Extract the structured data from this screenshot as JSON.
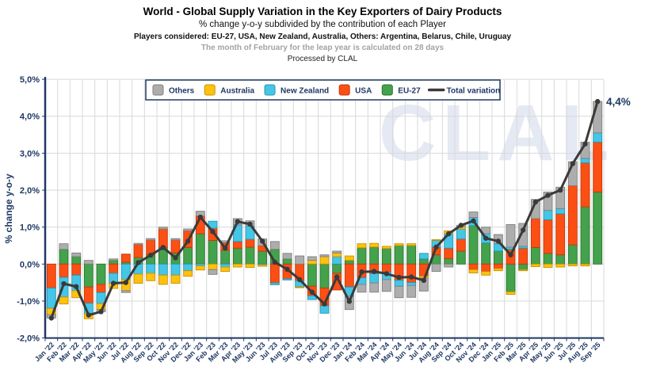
{
  "header": {
    "title": "World - Global Supply Variation in the Key Exporters of Dairy Products",
    "subtitle": "% change y-o-y subdivided by the contribution of each Player",
    "players": "Players considered: EU-27, USA, New Zealand, Australia, Others: Argentina, Belarus, Chile, Uruguay",
    "note": "The month of February for the leap year is calculated on 28 days",
    "processed_by": "Processed by CLAL"
  },
  "watermark": "CLAL",
  "annotation": {
    "last_value_label": "4,4%"
  },
  "colors": {
    "navy_text": "#1F3864",
    "axis": "#1F3864",
    "grid": "#D9D9D9",
    "watermark": "#E5E9F3",
    "note_gray": "#A3A3A3",
    "line": "#3A3A3A"
  },
  "y_axis": {
    "title": "% change y-o-y",
    "tick_labels": [
      "5,0%",
      "4,0%",
      "3,0%",
      "2,0%",
      "1,0%",
      "0,0%",
      "-1,0%",
      "-2,0%"
    ],
    "tick_values": [
      5,
      4,
      3,
      2,
      1,
      0,
      -1,
      -2
    ],
    "min": -2,
    "max": 5
  },
  "legend": [
    {
      "label": "Others",
      "type": "box",
      "color": "#ADADAD",
      "border": "#7F7F7F"
    },
    {
      "label": "Australia",
      "type": "box",
      "color": "#FFC20E",
      "border": "#C79000"
    },
    {
      "label": "New Zealand",
      "type": "box",
      "color": "#45C6E6",
      "border": "#2596B5"
    },
    {
      "label": "USA",
      "type": "box",
      "color": "#FB4F14",
      "border": "#C23A0B"
    },
    {
      "label": "EU-27",
      "type": "box",
      "color": "#43A24B",
      "border": "#2E7233"
    },
    {
      "label": "Total variation",
      "type": "line",
      "color": "#3A3A3A"
    }
  ],
  "chart_data": {
    "type": "bar",
    "stacked": true,
    "line_overlay": "Total variation",
    "title": "World - Global Supply Variation in the Key Exporters of Dairy Products",
    "xlabel": "",
    "ylabel": "% change y-o-y",
    "ylim": [
      -2,
      5
    ],
    "grid": true,
    "legend_position": "top",
    "categories": [
      "Jan '22",
      "Feb '22",
      "Mar '22",
      "Apr '22",
      "May '22",
      "Jun '22",
      "Jul '22",
      "Aug '22",
      "Sep '22",
      "Oct '22",
      "Nov '22",
      "Dec '22",
      "Jan '23",
      "Feb '23",
      "Mar '23",
      "Apr '23",
      "May '23",
      "Jun '23",
      "Jul '23",
      "Aug '23",
      "Sep '23",
      "Oct '23",
      "Nov '23",
      "Dec '23",
      "Jan '24",
      "Feb '24",
      "Mar '24",
      "Apr '24",
      "May '24",
      "Jun '24",
      "Jul '24",
      "Aug '24",
      "Sep '24",
      "Oct '24",
      "Nov '24",
      "Dec '24",
      "Jan '25",
      "Feb '25",
      "Mar '25",
      "Apr '25",
      "May '25",
      "Jun '25",
      "Jul '25",
      "Aug '25",
      "Sep '25"
    ],
    "series": [
      {
        "name": "EU-27",
        "color": "#43A24B",
        "border": "#2E7233",
        "values": [
          0.0,
          0.4,
          0.2,
          -0.62,
          -0.55,
          0.1,
          0.05,
          0.18,
          0.25,
          0.45,
          0.3,
          0.45,
          0.82,
          0.64,
          0.37,
          0.43,
          0.46,
          0.35,
          0.4,
          0.14,
          0.0,
          -0.6,
          -0.65,
          -0.25,
          0.1,
          0.44,
          0.46,
          0.42,
          0.5,
          0.5,
          0.14,
          0.25,
          0.15,
          0.35,
          1.04,
          0.57,
          0.35,
          -0.75,
          -0.15,
          0.45,
          0.29,
          0.25,
          0.52,
          1.55,
          1.95
        ]
      },
      {
        "name": "USA",
        "color": "#FB4F14",
        "border": "#C23A0B",
        "values": [
          -0.65,
          -0.36,
          -0.3,
          -0.44,
          -0.22,
          -0.25,
          0.22,
          0.35,
          0.4,
          0.5,
          0.35,
          0.45,
          0.48,
          0.33,
          0.21,
          0.18,
          0.21,
          0.15,
          -0.51,
          -0.4,
          -0.45,
          -0.26,
          -0.48,
          -0.45,
          -0.62,
          -0.37,
          -0.26,
          -0.22,
          -0.44,
          -0.5,
          -0.33,
          0.21,
          0.28,
          0.33,
          -0.15,
          -0.2,
          -0.12,
          0.4,
          0.43,
          0.78,
          0.91,
          1.11,
          1.6,
          1.19,
          1.35
        ]
      },
      {
        "name": "New Zealand",
        "color": "#45C6E6",
        "border": "#2596B5",
        "values": [
          -0.55,
          -0.53,
          -0.42,
          -0.28,
          -0.3,
          -0.27,
          -0.42,
          -0.27,
          -0.25,
          -0.3,
          -0.3,
          -0.18,
          -0.05,
          0.19,
          -0.08,
          0.45,
          0.36,
          -0.02,
          -0.05,
          -0.03,
          -0.17,
          -0.1,
          -0.2,
          0.2,
          -0.25,
          -0.18,
          -0.25,
          -0.2,
          -0.16,
          -0.08,
          0.15,
          0.18,
          0.39,
          0.27,
          0.22,
          0.25,
          0.2,
          0.06,
          0.05,
          0.0,
          0.25,
          0.14,
          0.0,
          0.12,
          0.25
        ]
      },
      {
        "name": "Australia",
        "color": "#FFC20E",
        "border": "#C79000",
        "values": [
          -0.17,
          -0.19,
          -0.19,
          -0.14,
          -0.16,
          -0.14,
          -0.3,
          -0.25,
          -0.2,
          -0.25,
          -0.22,
          -0.15,
          -0.11,
          -0.15,
          -0.12,
          -0.08,
          -0.09,
          -0.04,
          0.0,
          0.0,
          -0.02,
          0.1,
          0.2,
          0.1,
          0.12,
          0.11,
          0.1,
          0.06,
          0.05,
          0.05,
          -0.05,
          0.02,
          0.08,
          0.06,
          -0.09,
          -0.1,
          -0.06,
          -0.07,
          -0.03,
          -0.07,
          -0.09,
          -0.08,
          -0.05,
          -0.05,
          0.0
        ]
      },
      {
        "name": "Others",
        "color": "#ADADAD",
        "border": "#7F7F7F",
        "values": [
          -0.09,
          0.15,
          0.1,
          0.1,
          -0.06,
          0.04,
          -0.05,
          0.03,
          0.04,
          0.05,
          0.04,
          0.05,
          0.13,
          -0.13,
          0.05,
          0.17,
          0.14,
          0.18,
          0.21,
          0.15,
          0.22,
          0.1,
          0.05,
          0.05,
          -0.36,
          -0.21,
          -0.25,
          -0.32,
          -0.31,
          -0.32,
          -0.35,
          -0.2,
          -0.08,
          0.04,
          0.15,
          0.18,
          0.25,
          0.61,
          0.62,
          0.52,
          0.5,
          0.58,
          0.65,
          0.44,
          0.85
        ]
      }
    ],
    "total_variation": [
      -1.46,
      -0.53,
      -0.61,
      -1.38,
      -1.29,
      -0.52,
      -0.5,
      0.04,
      0.24,
      0.45,
      0.17,
      0.62,
      1.27,
      0.88,
      0.43,
      1.15,
      1.08,
      0.62,
      0.05,
      -0.14,
      -0.42,
      -0.76,
      -1.08,
      -0.35,
      -1.01,
      -0.21,
      -0.2,
      -0.26,
      -0.36,
      -0.35,
      -0.44,
      0.46,
      0.82,
      1.05,
      1.17,
      0.7,
      0.62,
      0.25,
      0.92,
      1.68,
      1.86,
      2.0,
      2.72,
      3.25,
      4.4
    ]
  }
}
